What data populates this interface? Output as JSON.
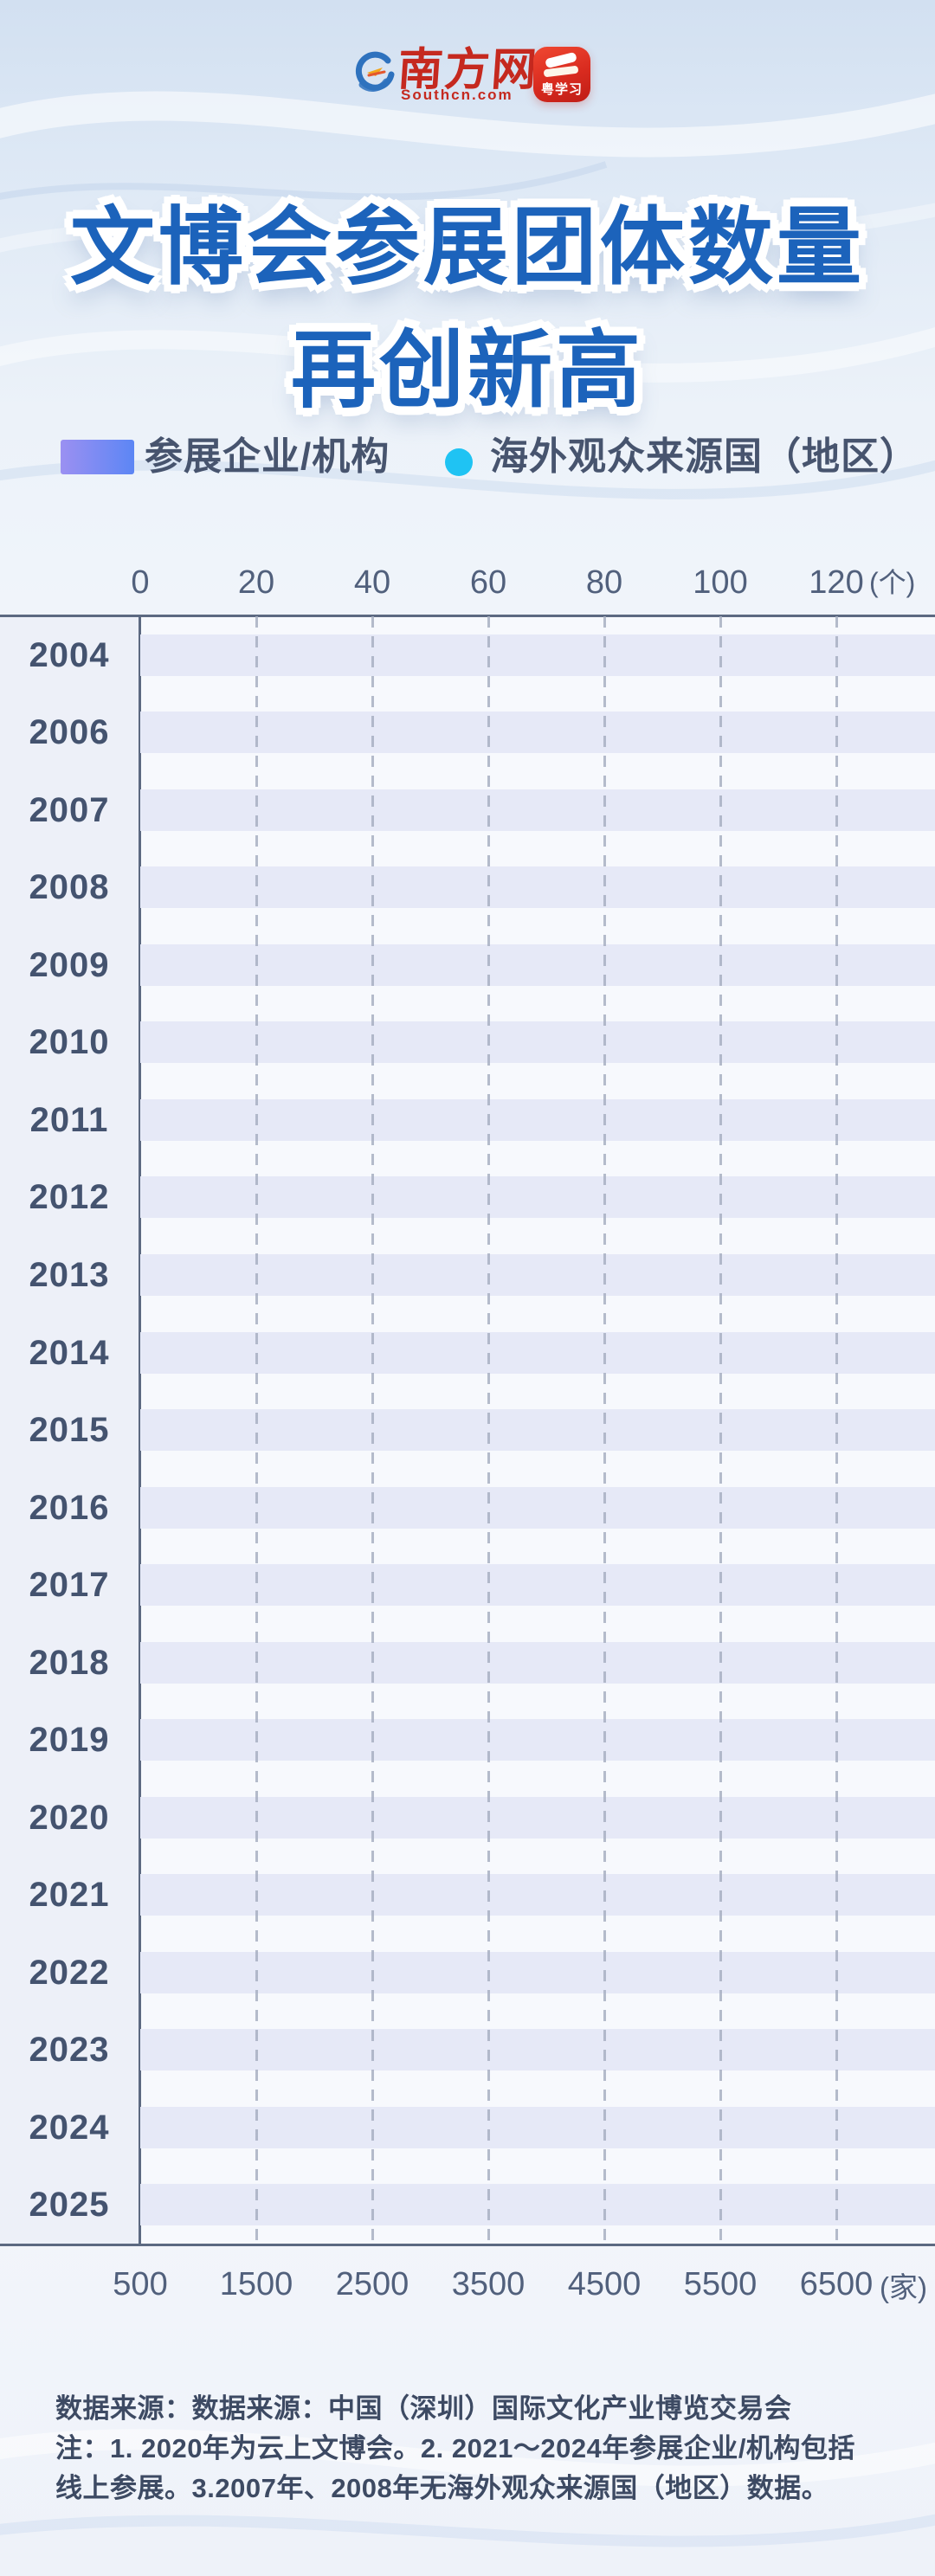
{
  "header": {
    "southcn": {
      "name_cn": "南方网",
      "domain": "Southcn.com"
    },
    "yuexuexi": {
      "label": "粤学习"
    }
  },
  "title": {
    "line1": "文博会参展团体数量",
    "line2": "再创新高"
  },
  "legend": [
    {
      "label": "参展企业/机构",
      "swatch": "gradient-bar",
      "colors": [
        "#9b90f2",
        "#5c86f4"
      ]
    },
    {
      "label": "海外观众来源国（地区）",
      "swatch": "dot",
      "colors": [
        "#1fc3f3"
      ]
    }
  ],
  "chart_data": {
    "type": "bar",
    "orientation": "horizontal",
    "title": "文博会参展团体数量再创新高",
    "categories": [
      2004,
      2006,
      2007,
      2008,
      2009,
      2010,
      2011,
      2012,
      2013,
      2014,
      2015,
      2016,
      2017,
      2018,
      2019,
      2020,
      2021,
      2022,
      2023,
      2024,
      2025
    ],
    "series": [
      {
        "name": "参展企业/机构",
        "axis": "bottom",
        "values": []
      },
      {
        "name": "海外观众来源国（地区）",
        "axis": "top",
        "values": []
      }
    ],
    "values_visible": false,
    "top_axis": {
      "ticks": [
        0,
        20,
        40,
        60,
        80,
        100,
        120
      ],
      "unit": "(个)",
      "range": [
        0,
        120
      ]
    },
    "bottom_axis": {
      "ticks": [
        500,
        1500,
        2500,
        3500,
        4500,
        5500,
        6500
      ],
      "unit": "(家)",
      "range": [
        500,
        6500
      ]
    },
    "grid": "dashed-vertical",
    "legend_position": "top"
  },
  "footer": {
    "lines": [
      "数据来源：数据来源：中国（深圳）国际文化产业博览交易会",
      "注：1. 2020年为云上文博会。2. 2021～2024年参展企业/机构包括",
      "线上参展。3.2007年、2008年无海外观众来源国（地区）数据。"
    ]
  }
}
